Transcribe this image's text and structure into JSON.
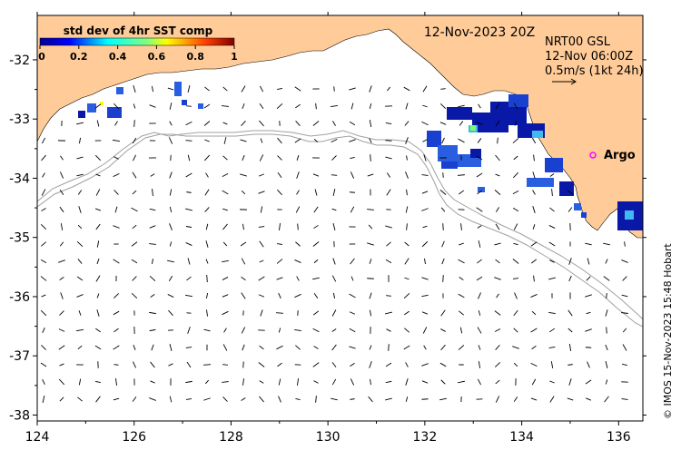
{
  "title_date": "12-Nov-2023 20Z",
  "colorbar": {
    "title": "std dev of 4hr SST comp",
    "ticks": [
      "0",
      "0.2",
      "0.4",
      "0.6",
      "0.8",
      "1"
    ]
  },
  "current_info": {
    "line1": "NRT00 GSL",
    "line2": "12-Nov 06:00Z",
    "line3": "0.5m/s (1kt 24h)"
  },
  "argo_label": "Argo",
  "credit": "© IMOS 15-Nov-2023 15:48 Hobart",
  "axes": {
    "x_ticks": [
      "124",
      "126",
      "128",
      "130",
      "132",
      "134",
      "136"
    ],
    "y_ticks": [
      "-32",
      "-33",
      "-34",
      "-35",
      "-36",
      "-37",
      "-38"
    ],
    "xlim": [
      124,
      136.5
    ],
    "ylim": [
      -38.1,
      -31.25
    ]
  },
  "colors": {
    "land": "#ffcc99",
    "contour": "#a0a0a0",
    "argo": "#ff00ff",
    "sst_dark": "#0a18a8",
    "sst_mid": "#2a5ee0",
    "sst_light": "#40b8f0"
  }
}
